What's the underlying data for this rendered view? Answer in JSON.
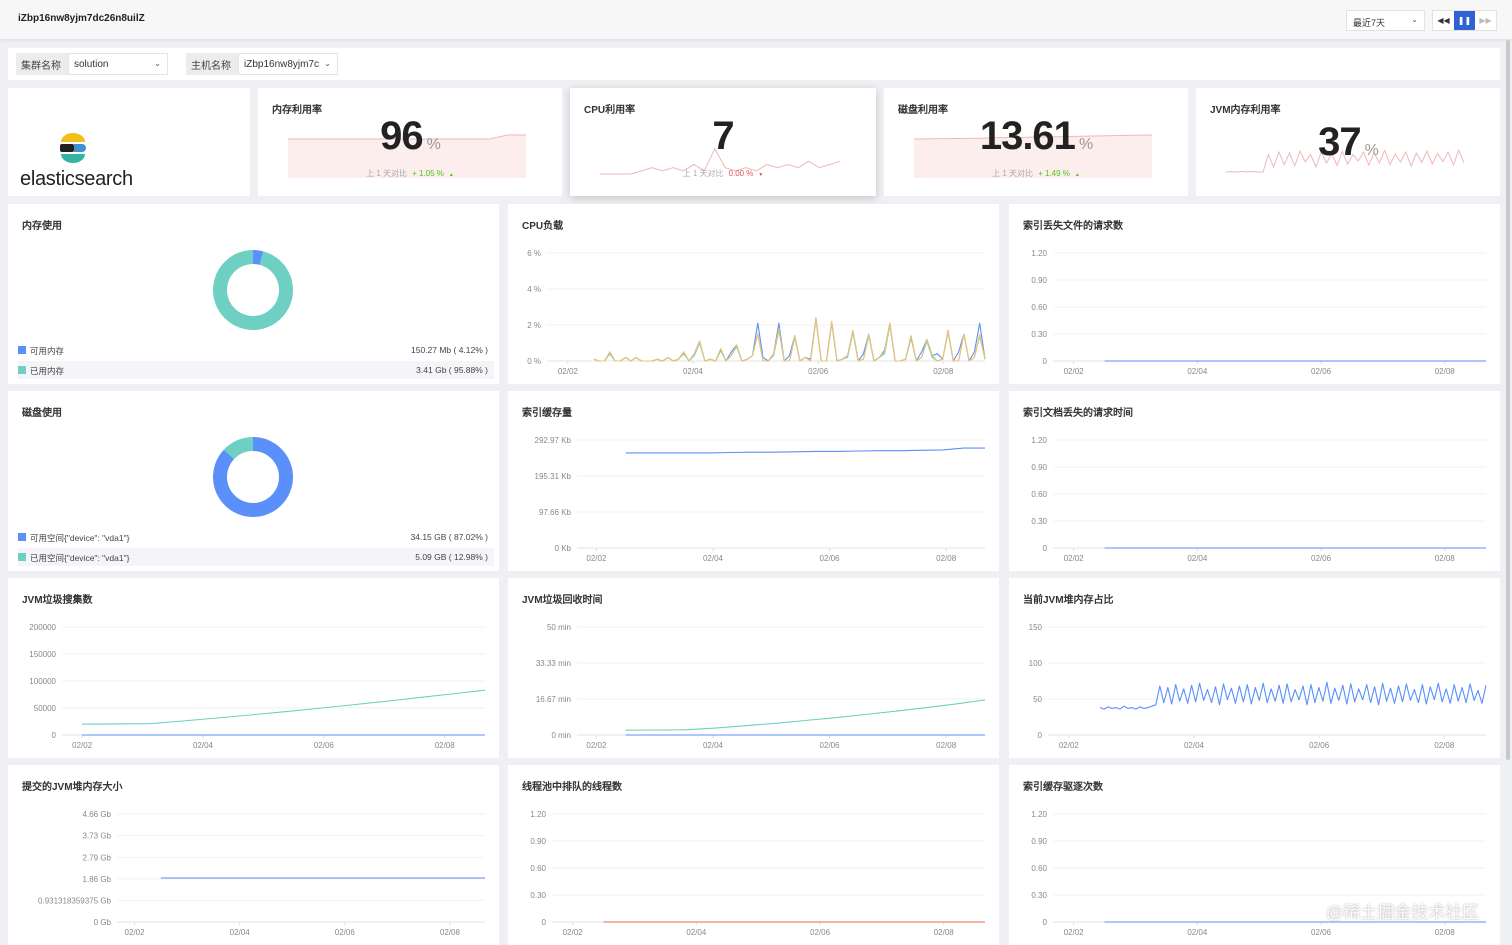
{
  "header": {
    "title": "iZbp16nw8yjm7dc26n8uilZ",
    "time_range": "最近7天",
    "rewind_icon": "rewind-icon",
    "pause_icon": "pause-icon",
    "forward_icon": "fast-forward-icon"
  },
  "filters": {
    "cluster_label": "集群名称",
    "cluster_value": "solution",
    "host_label": "主机名称",
    "host_value": "iZbp16nw8yjm7c"
  },
  "logo": {
    "text": "elasticsearch"
  },
  "kpis": [
    {
      "title": "内存利用率",
      "value": "96",
      "unit": "%",
      "compare_label": "上 1 天对比",
      "compare_value": "+ 1.05 %",
      "trend": "▲",
      "trend_color": "#52c41a",
      "spark": [
        95,
        95,
        95,
        95,
        95,
        95,
        95,
        95,
        95,
        95,
        95,
        95,
        96,
        96
      ]
    },
    {
      "title": "CPU利用率",
      "value": "7",
      "unit": "",
      "compare_label": "上 1 天对比",
      "compare_value": "0.00 %",
      "trend": "▼",
      "trend_color": "#e0555a",
      "spark": [
        1,
        1,
        1,
        1,
        2,
        3,
        2,
        3,
        2,
        4,
        2,
        9,
        3,
        2,
        3,
        2,
        4,
        3,
        4,
        3,
        5,
        3,
        4,
        5
      ]
    },
    {
      "title": "磁盘利用率",
      "value": "13.61",
      "unit": "%",
      "compare_label": "上 1 天对比",
      "compare_value": "+ 1.49 %",
      "trend": "▲",
      "trend_color": "#52c41a",
      "spark": [
        12.1,
        12.2,
        12.3,
        12.4,
        12.6,
        12.7,
        12.9,
        13.0,
        13.2,
        13.3,
        13.5,
        13.6
      ]
    },
    {
      "title": "JVM内存利用率",
      "value": "37",
      "unit": "%",
      "compare_label": "",
      "compare_value": "",
      "trend": "",
      "spark": [
        20,
        21,
        20,
        21,
        20,
        21,
        20,
        20,
        55,
        30,
        60,
        35,
        58,
        32,
        62,
        40,
        55,
        30,
        60,
        38,
        57,
        33,
        61,
        36,
        55,
        42,
        60,
        34,
        58,
        38,
        63,
        35,
        56,
        40,
        60,
        32,
        58,
        39,
        62,
        36,
        57,
        41,
        60,
        34,
        64,
        38
      ]
    }
  ],
  "colors": {
    "blue": "#5b8ff9",
    "teal": "#6dd0c2",
    "orange": "#f3c26b",
    "red": "#e8684a",
    "accent": "#2f62d3"
  },
  "panels": [
    {
      "type": "donut",
      "title": "内存使用",
      "slices": [
        {
          "label": "可用内存",
          "value": "150.27 Mb ( 4.12% )",
          "pct": 4.12,
          "color": "#5b8ff9"
        },
        {
          "label": "已用内存",
          "value": "3.41 Gb ( 95.88% )",
          "pct": 95.88,
          "color": "#6dd0c2"
        }
      ]
    },
    {
      "type": "line",
      "title": "CPU负载",
      "y_ticks": [
        {
          "v": 0,
          "label": "0 %"
        },
        {
          "v": 2,
          "label": "2 %"
        },
        {
          "v": 4,
          "label": "4 %"
        },
        {
          "v": 6,
          "label": "6 %"
        }
      ],
      "ylim": [
        0,
        6
      ],
      "x_ticks": [
        "02/02",
        "02/04",
        "02/06",
        "02/08"
      ],
      "xlim": [
        "02/01 16:00",
        "02/08 16:00"
      ],
      "series": [
        {
          "color": "#5b8ff9",
          "start": "02/02 10:00",
          "end": "02/08 16:00",
          "values": [
            0.1,
            0,
            0,
            0.5,
            0,
            0,
            0.2,
            0,
            0.2,
            0,
            0,
            0,
            0.1,
            0,
            0.2,
            0,
            0.1,
            0.5,
            0,
            0.4,
            1.1,
            0,
            0.1,
            0,
            0.6,
            0,
            0.5,
            0.9,
            0,
            0.1,
            0.3,
            2.1,
            0.2,
            0,
            0.4,
            2.1,
            0,
            0.3,
            1.4,
            0,
            0.2,
            0.1,
            2.4,
            0,
            0,
            2.2,
            0,
            0.1,
            0.3,
            1.7,
            0,
            0.4,
            1.5,
            0,
            0.2,
            0.6,
            2.1,
            0,
            0,
            0.1,
            1.3,
            0,
            0.5,
            1.2,
            0.3,
            0.4,
            0.1,
            1.7,
            0,
            0.5,
            1.5,
            0,
            0.5,
            2.1,
            0.1
          ]
        },
        {
          "color": "#6dd0c2",
          "start": "02/02 10:00",
          "end": "02/08 16:00",
          "values": [
            0.1,
            0,
            0,
            0.4,
            0,
            0,
            0.2,
            0,
            0.2,
            0,
            0,
            0,
            0.1,
            0,
            0.2,
            0,
            0.1,
            0.4,
            0,
            0.3,
            1.0,
            0,
            0.1,
            0,
            0.6,
            0,
            0.3,
            0.8,
            0,
            0.1,
            0.3,
            1.5,
            0,
            0,
            0.3,
            1.7,
            0,
            0,
            1.3,
            0,
            0.2,
            0,
            2.3,
            0,
            0,
            2.1,
            0,
            0.1,
            0.2,
            1.6,
            0,
            0.1,
            1.4,
            0,
            0.2,
            0.4,
            2.0,
            0,
            0,
            0.1,
            1.4,
            0,
            0.2,
            1.1,
            0.2,
            0,
            0.1,
            1.6,
            0,
            0,
            1.5,
            0,
            0.2,
            1.4,
            0.1
          ]
        },
        {
          "color": "#f3c26b",
          "start": "02/02 10:00",
          "end": "02/08 16:00",
          "values": [
            0.1,
            0,
            0,
            0.5,
            0,
            0,
            0.2,
            0,
            0.2,
            0,
            0,
            0,
            0.1,
            0,
            0.2,
            0,
            0.1,
            0.5,
            0,
            0.4,
            1.1,
            0,
            0.1,
            0,
            0.7,
            0,
            0.3,
            0.9,
            0,
            0.1,
            0.3,
            1.5,
            0,
            0,
            0.4,
            1.8,
            0,
            0,
            1.4,
            0,
            0.2,
            0,
            2.4,
            0,
            0,
            2.2,
            0,
            0.1,
            0.3,
            1.7,
            0,
            0.1,
            1.5,
            0,
            0.2,
            0.5,
            2.1,
            0,
            0,
            0.1,
            1.4,
            0,
            0.2,
            1.2,
            0.3,
            0,
            0.1,
            1.7,
            0,
            0,
            1.5,
            0,
            0.2,
            1.5,
            0.1
          ]
        }
      ]
    },
    {
      "type": "line",
      "title": "索引丢失文件的请求数",
      "y_ticks": [
        {
          "v": 0,
          "label": "0"
        },
        {
          "v": 0.3,
          "label": "0.30"
        },
        {
          "v": 0.6,
          "label": "0.60"
        },
        {
          "v": 0.9,
          "label": "0.90"
        },
        {
          "v": 1.2,
          "label": "1.20"
        }
      ],
      "ylim": [
        0,
        1.2
      ],
      "x_ticks": [
        "02/02",
        "02/04",
        "02/06",
        "02/08"
      ],
      "xlim": [
        "02/01 16:00",
        "02/08 16:00"
      ],
      "series": [
        {
          "color": "#5b8ff9",
          "start": "02/02 12:00",
          "end": "02/08 16:00",
          "values": [
            0,
            0
          ]
        }
      ]
    },
    {
      "type": "donut",
      "title": "磁盘使用",
      "slices": [
        {
          "label": "可用空间{\"device\": \"vda1\"}",
          "value": "34.15 GB ( 87.02% )",
          "pct": 87.02,
          "color": "#5b8ff9"
        },
        {
          "label": "已用空间{\"device\": \"vda1\"}",
          "value": "5.09 GB ( 12.98% )",
          "pct": 12.98,
          "color": "#6dd0c2"
        }
      ]
    },
    {
      "type": "line",
      "title": "索引缓存量",
      "y_ticks": [
        {
          "v": 0,
          "label": "0 Kb"
        },
        {
          "v": 97.66,
          "label": "97.66 Kb"
        },
        {
          "v": 195.31,
          "label": "195.31 Kb"
        },
        {
          "v": 292.97,
          "label": "292.97 Kb"
        }
      ],
      "ylim": [
        0,
        292.97
      ],
      "x_ticks": [
        "02/02",
        "02/04",
        "02/06",
        "02/08"
      ],
      "xlim": [
        "02/01 16:00",
        "02/08 16:00"
      ],
      "series": [
        {
          "color": "#5b8ff9",
          "start": "02/02 12:00",
          "end": "02/08 16:00",
          "values": [
            258,
            258,
            258,
            258,
            258,
            259,
            260,
            260,
            261,
            262,
            262,
            263,
            264,
            264,
            265,
            266,
            271,
            271
          ]
        }
      ]
    },
    {
      "type": "line",
      "title": "索引文档丢失的请求时间",
      "y_ticks": [
        {
          "v": 0,
          "label": "0"
        },
        {
          "v": 0.3,
          "label": "0.30"
        },
        {
          "v": 0.6,
          "label": "0.60"
        },
        {
          "v": 0.9,
          "label": "0.90"
        },
        {
          "v": 1.2,
          "label": "1.20"
        }
      ],
      "ylim": [
        0,
        1.2
      ],
      "x_ticks": [
        "02/02",
        "02/04",
        "02/06",
        "02/08"
      ],
      "xlim": [
        "02/01 16:00",
        "02/08 16:00"
      ],
      "series": [
        {
          "color": "#5b8ff9",
          "start": "02/02 12:00",
          "end": "02/08 16:00",
          "values": [
            0,
            0
          ]
        }
      ]
    },
    {
      "type": "line",
      "title": "JVM垃圾搜集数",
      "y_ticks": [
        {
          "v": 0,
          "label": "0"
        },
        {
          "v": 50000,
          "label": "50000"
        },
        {
          "v": 100000,
          "label": "100000"
        },
        {
          "v": 150000,
          "label": "150000"
        },
        {
          "v": 200000,
          "label": "200000"
        }
      ],
      "ylim": [
        0,
        200000
      ],
      "x_ticks": [
        "02/02",
        "02/04",
        "02/06",
        "02/08"
      ],
      "xlim": [
        "02/01 16:00",
        "02/08 16:00"
      ],
      "series": [
        {
          "color": "#6dd0c2",
          "start": "02/02 00:00",
          "end": "02/08 16:00",
          "values": [
            20000,
            20500,
            21000,
            26000,
            31500,
            37000,
            43000,
            49000,
            55500,
            62000,
            69000,
            76000,
            83000
          ]
        },
        {
          "color": "#5b8ff9",
          "start": "02/02 00:00",
          "end": "02/08 16:00",
          "values": [
            0,
            0
          ]
        }
      ]
    },
    {
      "type": "line",
      "title": "JVM垃圾回收时间",
      "y_ticks": [
        {
          "v": 0,
          "label": "0 min"
        },
        {
          "v": 16.67,
          "label": "16.67 min"
        },
        {
          "v": 33.33,
          "label": "33.33 min"
        },
        {
          "v": 50,
          "label": "50 min"
        }
      ],
      "ylim": [
        0,
        50
      ],
      "x_ticks": [
        "02/02",
        "02/04",
        "02/06",
        "02/08"
      ],
      "xlim": [
        "02/01 16:00",
        "02/08 16:00"
      ],
      "series": [
        {
          "color": "#6dd0c2",
          "start": "02/02 12:00",
          "end": "02/08 16:00",
          "values": [
            2.2,
            2.3,
            2.4,
            3.2,
            4.3,
            5.4,
            6.7,
            8.0,
            9.5,
            11.0,
            12.6,
            14.3,
            16.2
          ]
        },
        {
          "color": "#5b8ff9",
          "start": "02/02 12:00",
          "end": "02/08 16:00",
          "values": [
            0,
            0
          ]
        }
      ]
    },
    {
      "type": "line",
      "title": "当前JVM堆内存占比",
      "y_ticks": [
        {
          "v": 0,
          "label": "0"
        },
        {
          "v": 50,
          "label": "50"
        },
        {
          "v": 100,
          "label": "100"
        },
        {
          "v": 150,
          "label": "150"
        }
      ],
      "ylim": [
        0,
        150
      ],
      "x_ticks": [
        "02/02",
        "02/04",
        "02/06",
        "02/08"
      ],
      "xlim": [
        "02/01 16:00",
        "02/08 16:00"
      ],
      "series": [
        {
          "color": "#5b8ff9",
          "start": "02/02 12:00",
          "end": "02/08 16:00",
          "values": [
            38,
            36,
            39,
            37,
            38,
            36,
            40,
            37,
            38,
            36,
            39,
            37,
            38,
            40,
            42,
            68,
            45,
            66,
            43,
            70,
            47,
            64,
            44,
            69,
            46,
            72,
            48,
            63,
            45,
            67,
            42,
            71,
            49,
            65,
            44,
            68,
            46,
            70,
            43,
            66,
            48,
            72,
            45,
            64,
            47,
            69,
            44,
            71,
            46,
            63,
            49,
            68,
            42,
            70,
            45,
            66,
            47,
            73,
            44,
            65,
            48,
            69,
            43,
            71,
            46,
            64,
            49,
            70,
            45,
            67,
            42,
            72,
            47,
            65,
            44,
            68,
            46,
            71,
            48,
            63,
            45,
            70,
            43,
            67,
            49,
            72,
            46,
            64,
            44,
            70,
            47,
            66,
            45,
            71,
            48,
            62,
            44,
            69
          ]
        }
      ]
    },
    {
      "type": "line",
      "title": "提交的JVM堆内存大小",
      "y_ticks": [
        {
          "v": 0,
          "label": "0 Gb"
        },
        {
          "v": 0.931318359375,
          "label": "0.931318359375 Gb"
        },
        {
          "v": 1.86,
          "label": "1.86 Gb"
        },
        {
          "v": 2.79,
          "label": "2.79 Gb"
        },
        {
          "v": 3.73,
          "label": "3.73 Gb"
        },
        {
          "v": 4.66,
          "label": "4.66 Gb"
        }
      ],
      "ylim": [
        0,
        4.66
      ],
      "x_ticks": [
        "02/02",
        "02/04",
        "02/06",
        "02/08"
      ],
      "xlim": [
        "02/01 16:00",
        "02/08 16:00"
      ],
      "series": [
        {
          "color": "#5b8ff9",
          "start": "02/02 12:00",
          "end": "02/08 16:00",
          "values": [
            1.9,
            1.9
          ]
        }
      ]
    },
    {
      "type": "line",
      "title": "线程池中排队的线程数",
      "y_ticks": [
        {
          "v": 0,
          "label": "0"
        },
        {
          "v": 0.3,
          "label": "0.30"
        },
        {
          "v": 0.6,
          "label": "0.60"
        },
        {
          "v": 0.9,
          "label": "0.90"
        },
        {
          "v": 1.2,
          "label": "1.20"
        }
      ],
      "ylim": [
        0,
        1.2
      ],
      "x_ticks": [
        "02/02",
        "02/04",
        "02/06",
        "02/08"
      ],
      "xlim": [
        "02/01 16:00",
        "02/08 16:00"
      ],
      "series": [
        {
          "color": "#e8684a",
          "start": "02/02 12:00",
          "end": "02/08 16:00",
          "values": [
            0,
            0
          ]
        }
      ]
    },
    {
      "type": "line",
      "title": "索引缓存驱逐次数",
      "y_ticks": [
        {
          "v": 0,
          "label": "0"
        },
        {
          "v": 0.3,
          "label": "0.30"
        },
        {
          "v": 0.6,
          "label": "0.60"
        },
        {
          "v": 0.9,
          "label": "0.90"
        },
        {
          "v": 1.2,
          "label": "1.20"
        }
      ],
      "ylim": [
        0,
        1.2
      ],
      "x_ticks": [
        "02/02",
        "02/04",
        "02/06",
        "02/08"
      ],
      "xlim": [
        "02/01 16:00",
        "02/08 16:00"
      ],
      "series": [
        {
          "color": "#5b8ff9",
          "start": "02/02 12:00",
          "end": "02/08 16:00",
          "values": [
            0,
            0
          ]
        }
      ]
    }
  ],
  "watermark": "@稀土掘金技术社区"
}
